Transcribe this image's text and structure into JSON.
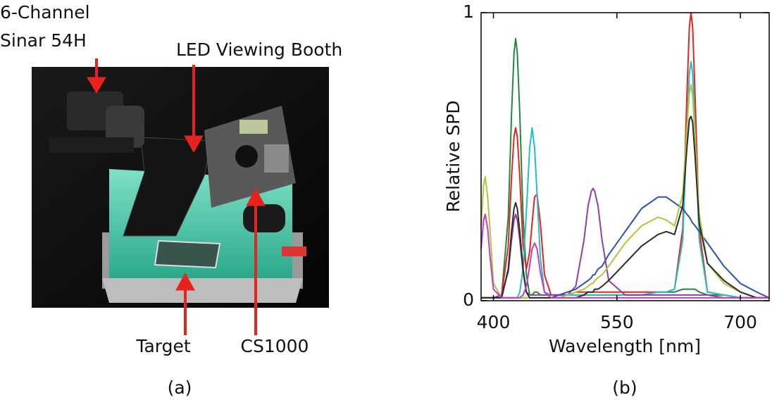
{
  "panel_a": {
    "labels": {
      "camera": [
        "6-Channel",
        "Sinar 54H"
      ],
      "booth": "LED Viewing Booth",
      "target": "Target",
      "meter": "CS1000"
    },
    "caption": "(a)"
  },
  "chart_data": {
    "type": "line",
    "xlabel": "Wavelength [nm]",
    "ylabel": "Relative SPD",
    "caption": "(b)",
    "xlim": [
      385,
      735
    ],
    "ylim": [
      0,
      1
    ],
    "xticks": [
      400,
      550,
      700
    ],
    "yticks": [
      0,
      1
    ],
    "grid": false,
    "x": [
      385,
      388,
      390,
      393,
      396,
      400,
      410,
      418,
      422,
      425,
      427,
      429,
      432,
      436,
      440,
      444,
      447,
      450,
      453,
      457,
      462,
      470,
      480,
      490,
      500,
      510,
      515,
      519,
      521,
      523,
      527,
      532,
      540,
      560,
      580,
      600,
      610,
      620,
      630,
      635,
      638,
      640,
      642,
      645,
      650,
      660,
      680,
      700,
      720,
      735
    ],
    "series": [
      {
        "color": "#1e8a3c",
        "values": [
          0.01,
          0.01,
          0.01,
          0.01,
          0.01,
          0.01,
          0.02,
          0.29,
          0.65,
          0.86,
          0.91,
          0.86,
          0.65,
          0.29,
          0.09,
          0.02,
          0.02,
          0.03,
          0.03,
          0.02,
          0.02,
          0.02,
          0.02,
          0.02,
          0.02,
          0.02,
          0.02,
          0.02,
          0.02,
          0.02,
          0.02,
          0.02,
          0.02,
          0.02,
          0.02,
          0.03,
          0.03,
          0.03,
          0.04,
          0.04,
          0.04,
          0.04,
          0.04,
          0.04,
          0.03,
          0.02,
          0.02,
          0.01,
          0.01,
          0.01
        ]
      },
      {
        "color": "#e8221f",
        "values": [
          0.01,
          0.01,
          0.01,
          0.01,
          0.01,
          0.01,
          0.02,
          0.19,
          0.43,
          0.57,
          0.6,
          0.57,
          0.43,
          0.19,
          0.11,
          0.17,
          0.27,
          0.36,
          0.37,
          0.27,
          0.09,
          0.02,
          0.02,
          0.02,
          0.03,
          0.03,
          0.03,
          0.03,
          0.03,
          0.03,
          0.03,
          0.03,
          0.03,
          0.03,
          0.03,
          0.03,
          0.03,
          0.04,
          0.25,
          0.71,
          0.95,
          1.0,
          0.95,
          0.71,
          0.25,
          0.03,
          0.02,
          0.01,
          0.01,
          0.01
        ]
      },
      {
        "color": "#22c0c4",
        "values": [
          0.01,
          0.01,
          0.01,
          0.01,
          0.01,
          0.01,
          0.01,
          0.01,
          0.01,
          0.01,
          0.01,
          0.01,
          0.03,
          0.11,
          0.31,
          0.53,
          0.6,
          0.53,
          0.37,
          0.15,
          0.03,
          0.02,
          0.02,
          0.02,
          0.02,
          0.02,
          0.02,
          0.02,
          0.02,
          0.02,
          0.02,
          0.02,
          0.02,
          0.02,
          0.02,
          0.03,
          0.03,
          0.04,
          0.21,
          0.59,
          0.79,
          0.83,
          0.79,
          0.59,
          0.21,
          0.03,
          0.02,
          0.01,
          0.01,
          0.01
        ]
      },
      {
        "color": "#8e3fa6",
        "values": [
          0.01,
          0.01,
          0.01,
          0.01,
          0.01,
          0.01,
          0.02,
          0.1,
          0.21,
          0.28,
          0.3,
          0.28,
          0.21,
          0.1,
          0.03,
          0.02,
          0.02,
          0.02,
          0.02,
          0.02,
          0.02,
          0.02,
          0.02,
          0.02,
          0.05,
          0.21,
          0.33,
          0.38,
          0.39,
          0.38,
          0.33,
          0.21,
          0.07,
          0.02,
          0.02,
          0.02,
          0.02,
          0.02,
          0.02,
          0.02,
          0.02,
          0.02,
          0.02,
          0.02,
          0.02,
          0.02,
          0.01,
          0.01,
          0.01,
          0.01
        ]
      },
      {
        "color": "#2f4fb3",
        "values": [
          0.01,
          0.01,
          0.01,
          0.01,
          0.01,
          0.01,
          0.01,
          0.01,
          0.01,
          0.01,
          0.01,
          0.01,
          0.01,
          0.01,
          0.01,
          0.01,
          0.01,
          0.01,
          0.01,
          0.01,
          0.01,
          0.01,
          0.02,
          0.03,
          0.04,
          0.06,
          0.07,
          0.08,
          0.09,
          0.09,
          0.11,
          0.12,
          0.16,
          0.24,
          0.32,
          0.36,
          0.36,
          0.34,
          0.32,
          0.3,
          0.29,
          0.28,
          0.27,
          0.26,
          0.24,
          0.2,
          0.12,
          0.06,
          0.03,
          0.01
        ]
      },
      {
        "color": "#b3c43c",
        "values": [
          0.26,
          0.4,
          0.43,
          0.36,
          0.24,
          0.06,
          0.01,
          0.01,
          0.01,
          0.01,
          0.01,
          0.01,
          0.01,
          0.01,
          0.01,
          0.01,
          0.01,
          0.01,
          0.01,
          0.01,
          0.01,
          0.01,
          0.01,
          0.02,
          0.03,
          0.04,
          0.05,
          0.06,
          0.06,
          0.07,
          0.08,
          0.09,
          0.12,
          0.2,
          0.26,
          0.29,
          0.28,
          0.26,
          0.37,
          0.6,
          0.72,
          0.75,
          0.71,
          0.57,
          0.3,
          0.13,
          0.06,
          0.03,
          0.01,
          0.01
        ]
      },
      {
        "color": "#2b2b2b",
        "values": [
          0.01,
          0.01,
          0.01,
          0.01,
          0.01,
          0.01,
          0.01,
          0.11,
          0.24,
          0.32,
          0.34,
          0.32,
          0.24,
          0.11,
          0.03,
          0.01,
          0.01,
          0.01,
          0.01,
          0.01,
          0.01,
          0.01,
          0.01,
          0.01,
          0.01,
          0.02,
          0.03,
          0.03,
          0.03,
          0.04,
          0.04,
          0.05,
          0.07,
          0.13,
          0.19,
          0.23,
          0.24,
          0.23,
          0.33,
          0.53,
          0.63,
          0.64,
          0.62,
          0.5,
          0.27,
          0.13,
          0.07,
          0.03,
          0.01,
          0.01
        ]
      },
      {
        "color": "#c43cc4",
        "values": [
          0.18,
          0.28,
          0.3,
          0.25,
          0.15,
          0.04,
          0.01,
          0.01,
          0.01,
          0.01,
          0.01,
          0.01,
          0.01,
          0.02,
          0.05,
          0.12,
          0.18,
          0.2,
          0.18,
          0.1,
          0.03,
          0.01,
          0.01,
          0.01,
          0.01,
          0.01,
          0.01,
          0.01,
          0.01,
          0.01,
          0.01,
          0.01,
          0.01,
          0.01,
          0.01,
          0.01,
          0.01,
          0.01,
          0.01,
          0.01,
          0.01,
          0.01,
          0.01,
          0.01,
          0.01,
          0.01,
          0.01,
          0.01,
          0.01,
          0.01
        ]
      }
    ]
  }
}
